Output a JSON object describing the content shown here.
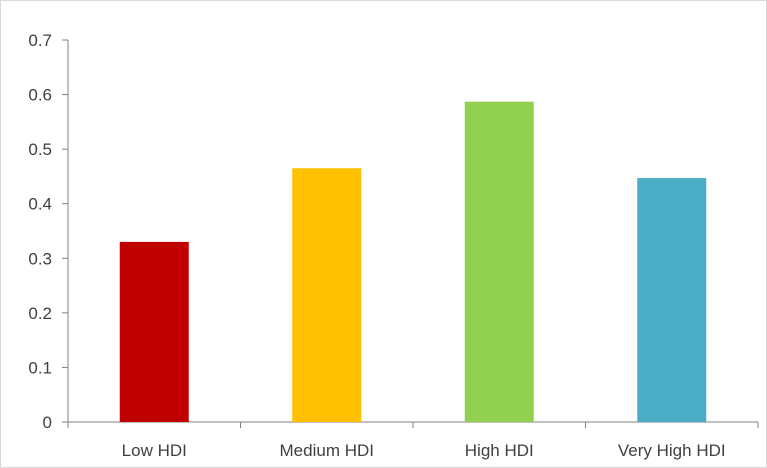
{
  "chart_data": {
    "type": "bar",
    "title": "",
    "xlabel": "",
    "ylabel": "",
    "categories": [
      "Low HDI",
      "Medium HDI",
      "High HDI",
      "Very High HDI"
    ],
    "values": [
      0.33,
      0.465,
      0.587,
      0.447
    ],
    "colors": [
      "#c00000",
      "#ffc000",
      "#92d050",
      "#4bacc6"
    ],
    "ylim": [
      0,
      0.7
    ],
    "yticks": [
      0,
      0.1,
      0.2,
      0.3,
      0.4,
      0.5,
      0.6,
      0.7
    ],
    "ytick_labels": [
      "0",
      "0.1",
      "0.2",
      "0.3",
      "0.4",
      "0.5",
      "0.6",
      "0.7"
    ],
    "grid": false,
    "legend": "none",
    "axis_color": "#808080"
  }
}
